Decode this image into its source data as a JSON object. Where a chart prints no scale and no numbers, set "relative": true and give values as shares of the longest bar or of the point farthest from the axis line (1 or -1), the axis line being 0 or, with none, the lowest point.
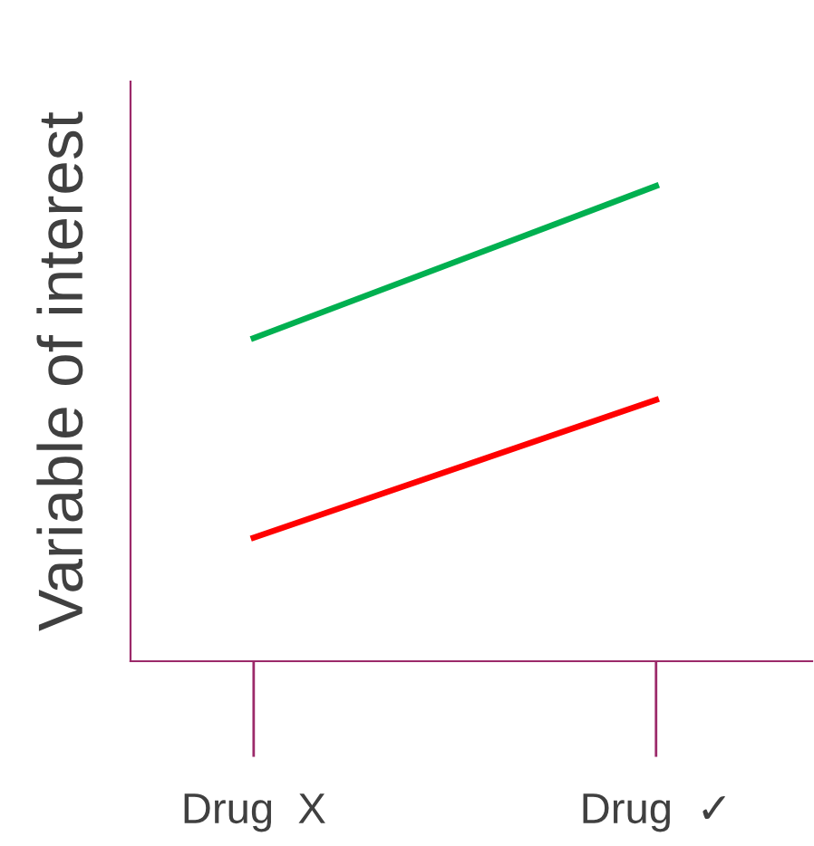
{
  "chart_data": {
    "type": "line",
    "relative": true,
    "ylabel": "Variable of interest",
    "categories": [
      "Drug  X",
      "Drug  ✓"
    ],
    "series": [
      {
        "color": "#00b050",
        "values": [
          0.68,
          1
        ]
      },
      {
        "color": "#ff0000",
        "values": [
          0.26,
          0.55
        ]
      }
    ],
    "grid": false,
    "legend": false,
    "marker": "none",
    "line_style": "solid",
    "tick_labels": "x"
  }
}
